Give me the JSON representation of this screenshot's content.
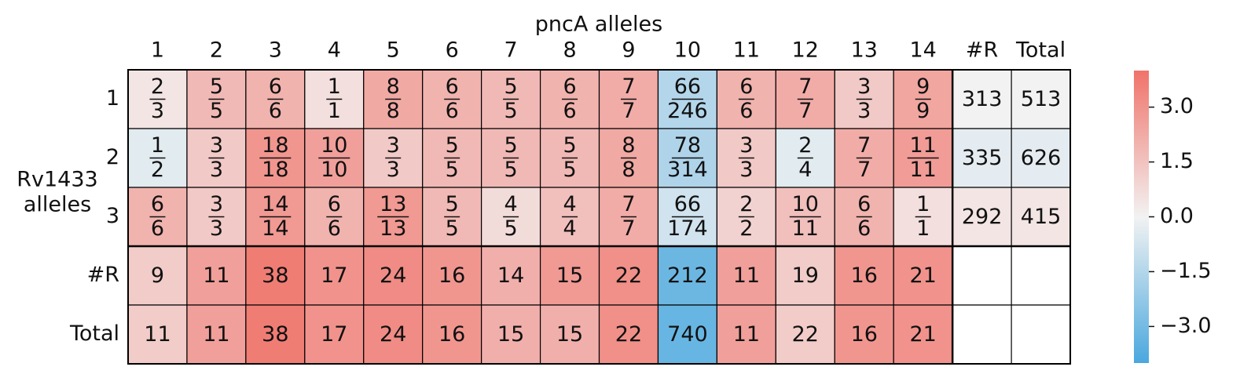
{
  "chart_data": {
    "type": "heatmap",
    "title": "pncA alleles",
    "ylabel_lines": [
      "Rv1433",
      "alleles"
    ],
    "columns": [
      "1",
      "2",
      "3",
      "4",
      "5",
      "6",
      "7",
      "8",
      "9",
      "10",
      "11",
      "12",
      "13",
      "14",
      "#R",
      "Total"
    ],
    "rows": [
      "1",
      "2",
      "3",
      "#R",
      "Total"
    ],
    "values": [
      [
        0.4,
        1.8,
        2.0,
        0.6,
        2.3,
        2.0,
        1.8,
        2.0,
        2.2,
        -1.5,
        2.0,
        2.2,
        1.3,
        2.4,
        0.0,
        0.0
      ],
      [
        -0.4,
        1.3,
        2.9,
        2.6,
        1.3,
        1.8,
        1.8,
        1.8,
        2.3,
        -1.6,
        1.3,
        -0.4,
        2.2,
        2.7,
        -0.3,
        -0.3
      ],
      [
        2.0,
        1.3,
        2.8,
        2.0,
        2.8,
        1.8,
        0.7,
        1.6,
        2.2,
        -0.8,
        1.0,
        1.6,
        2.0,
        0.6,
        0.4,
        0.4
      ],
      [
        1.2,
        2.6,
        3.7,
        3.0,
        3.2,
        2.9,
        2.1,
        2.8,
        3.1,
        -3.2,
        2.6,
        1.2,
        2.9,
        3.0,
        null,
        null
      ],
      [
        1.2,
        2.6,
        3.7,
        3.0,
        3.2,
        2.9,
        2.1,
        2.1,
        3.1,
        -3.3,
        2.6,
        1.2,
        2.9,
        3.0,
        null,
        null
      ]
    ],
    "labels": [
      [
        [
          2,
          3
        ],
        [
          5,
          5
        ],
        [
          6,
          6
        ],
        [
          1,
          1
        ],
        [
          8,
          8
        ],
        [
          6,
          6
        ],
        [
          5,
          5
        ],
        [
          6,
          6
        ],
        [
          7,
          7
        ],
        [
          66,
          246
        ],
        [
          6,
          6
        ],
        [
          7,
          7
        ],
        [
          3,
          3
        ],
        [
          9,
          9
        ],
        313,
        513
      ],
      [
        [
          1,
          2
        ],
        [
          3,
          3
        ],
        [
          18,
          18
        ],
        [
          10,
          10
        ],
        [
          3,
          3
        ],
        [
          5,
          5
        ],
        [
          5,
          5
        ],
        [
          5,
          5
        ],
        [
          8,
          8
        ],
        [
          78,
          314
        ],
        [
          3,
          3
        ],
        [
          2,
          4
        ],
        [
          7,
          7
        ],
        [
          11,
          11
        ],
        335,
        626
      ],
      [
        [
          6,
          6
        ],
        [
          3,
          3
        ],
        [
          14,
          14
        ],
        [
          6,
          6
        ],
        [
          13,
          13
        ],
        [
          5,
          5
        ],
        [
          4,
          5
        ],
        [
          4,
          4
        ],
        [
          7,
          7
        ],
        [
          66,
          174
        ],
        [
          2,
          2
        ],
        [
          10,
          11
        ],
        [
          6,
          6
        ],
        [
          1,
          1
        ],
        292,
        415
      ],
      [
        9,
        11,
        38,
        17,
        24,
        16,
        14,
        15,
        22,
        212,
        11,
        19,
        16,
        21,
        null,
        null
      ],
      [
        11,
        11,
        38,
        17,
        24,
        16,
        15,
        15,
        22,
        740,
        11,
        22,
        16,
        21,
        null,
        null
      ]
    ],
    "colormap": [
      "#4aa8de",
      "#f2f2f2",
      "#f0736a"
    ],
    "clim": [
      -4,
      4
    ],
    "cticks": [
      {
        "value": 3,
        "label": "3.0"
      },
      {
        "value": 1.5,
        "label": "1.5"
      },
      {
        "value": 0,
        "label": "0.0"
      },
      {
        "value": -1.5,
        "label": "−1.5"
      },
      {
        "value": -3,
        "label": "−3.0"
      }
    ]
  }
}
